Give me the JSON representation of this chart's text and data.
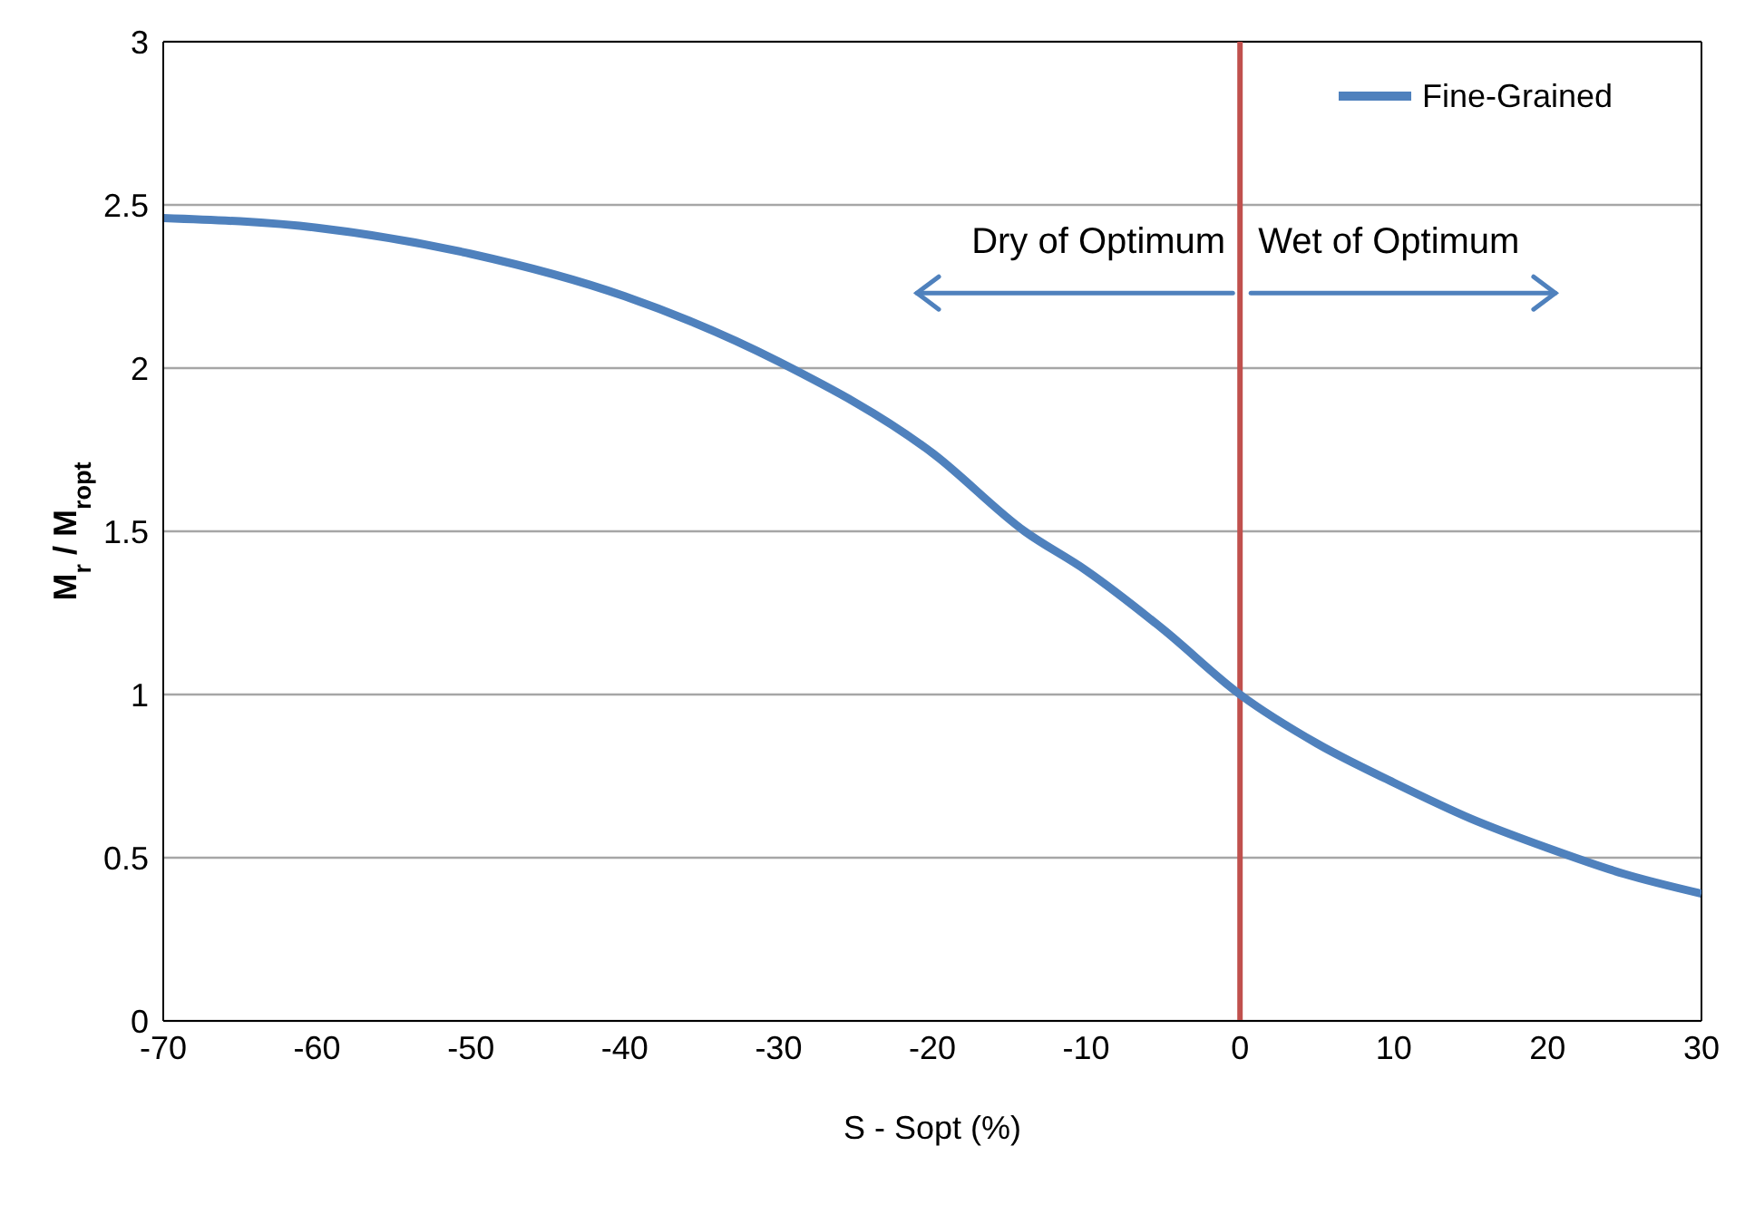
{
  "chart_data": {
    "type": "line",
    "xlabel": "S - Sopt (%)",
    "ylabel": "M$_{r}$ / M$_{ropt}$",
    "x": [
      -70,
      -60,
      -50,
      -40,
      -30,
      -20,
      -14,
      -10,
      -5,
      0,
      5,
      10,
      15,
      20,
      25,
      30
    ],
    "series": [
      {
        "name": "Fine-Grained",
        "color": "#4f81bd",
        "values": [
          2.46,
          2.43,
          2.35,
          2.22,
          2.02,
          1.74,
          1.5,
          1.38,
          1.2,
          1.0,
          0.85,
          0.73,
          0.62,
          0.53,
          0.45,
          0.39
        ]
      }
    ],
    "xlim": [
      -70,
      30
    ],
    "xticks": [
      -70,
      -60,
      -50,
      -40,
      -30,
      -20,
      -10,
      0,
      10,
      20,
      30
    ],
    "ylim": [
      0,
      3
    ],
    "yticks": [
      0,
      0.5,
      1,
      1.5,
      2,
      2.5,
      3
    ],
    "grid": "y",
    "legend": "top right",
    "marker": "none",
    "line_style": "solid",
    "ref_lines": [
      {
        "axis": "x",
        "value": 0,
        "color": "#c0504d"
      }
    ],
    "annotations": [
      "Dry of Optimum",
      "Wet of Optimum"
    ]
  }
}
